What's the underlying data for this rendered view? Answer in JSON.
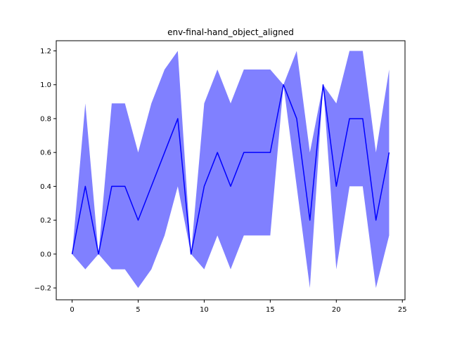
{
  "chart_data": {
    "type": "line",
    "title": "env-final-hand_object_aligned",
    "xlabel": "",
    "ylabel": "",
    "xlim": [
      -1.2,
      25.2
    ],
    "ylim": [
      -0.27,
      1.26
    ],
    "xticks": [
      0,
      5,
      10,
      15,
      20,
      25
    ],
    "xtick_labels": [
      "0",
      "5",
      "10",
      "15",
      "20",
      "25"
    ],
    "yticks": [
      -0.2,
      0.0,
      0.2,
      0.4,
      0.6,
      0.8,
      1.0,
      1.2
    ],
    "ytick_labels": [
      "−0.2",
      "0.0",
      "0.2",
      "0.4",
      "0.6",
      "0.8",
      "1.0",
      "1.2"
    ],
    "grid": false,
    "series": [
      {
        "color": "#0000ff",
        "band_color": "#8080ff",
        "x": [
          0,
          1,
          2,
          3,
          4,
          5,
          6,
          7,
          8,
          9,
          10,
          11,
          12,
          13,
          14,
          15,
          16,
          17,
          18,
          19,
          20,
          21,
          22,
          23,
          24
        ],
        "values": [
          0.0,
          0.4,
          0.0,
          0.4,
          0.4,
          0.2,
          0.4,
          0.6,
          0.8,
          0.0,
          0.4,
          0.6,
          0.4,
          0.6,
          0.6,
          0.6,
          1.0,
          0.8,
          0.2,
          1.0,
          0.4,
          0.8,
          0.8,
          0.2,
          0.6
        ],
        "upper": [
          0.0,
          0.89,
          0.0,
          0.89,
          0.89,
          0.6,
          0.89,
          1.09,
          1.2,
          0.0,
          0.89,
          1.09,
          0.89,
          1.09,
          1.09,
          1.09,
          1.0,
          1.2,
          0.6,
          1.0,
          0.89,
          1.2,
          1.2,
          0.6,
          1.09
        ],
        "lower": [
          0.0,
          -0.09,
          0.0,
          -0.09,
          -0.09,
          -0.2,
          -0.09,
          0.11,
          0.4,
          0.0,
          -0.09,
          0.11,
          -0.09,
          0.11,
          0.11,
          0.11,
          1.0,
          0.4,
          -0.2,
          1.0,
          -0.09,
          0.4,
          0.4,
          -0.2,
          0.11
        ]
      }
    ]
  }
}
